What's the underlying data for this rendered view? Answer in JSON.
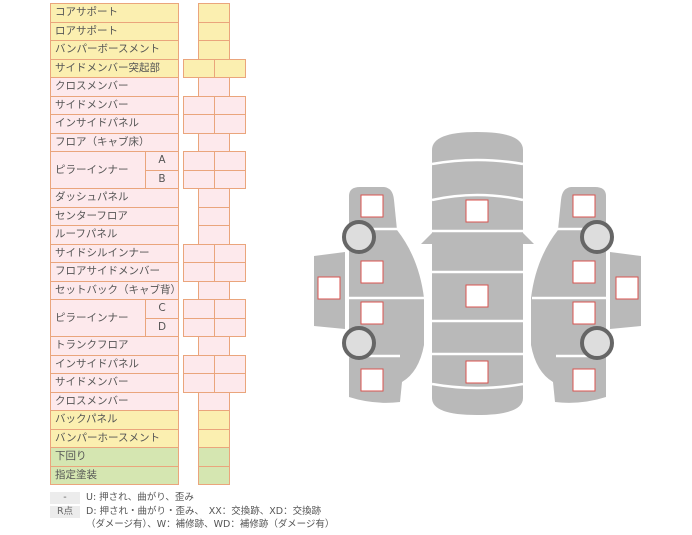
{
  "colors": {
    "yellow": "#fbefb0",
    "pink": "#fde9ec",
    "green": "#d5e6b1",
    "border": "#eaa57c",
    "body": "#b9b9b9",
    "marker": "#d9534f"
  },
  "rows": [
    {
      "label": "コアサポート",
      "color": "yellow",
      "cells": "single"
    },
    {
      "label": "ロアサポート",
      "color": "yellow",
      "cells": "single"
    },
    {
      "label": "バンパーボースメント",
      "color": "yellow",
      "cells": "single"
    },
    {
      "label": "サイドメンバー突起部",
      "color": "yellow",
      "cells": "double"
    },
    {
      "label": "クロスメンバー",
      "color": "pink",
      "cells": "single"
    },
    {
      "label": "サイドメンバー",
      "color": "pink",
      "cells": "double"
    },
    {
      "label": "インサイドパネル",
      "color": "pink",
      "cells": "double"
    },
    {
      "label": "フロア（キャブ床）",
      "color": "pink",
      "cells": "single"
    },
    {
      "label": "ピラーインナー",
      "color": "pink",
      "cells": "double",
      "subs": [
        "A",
        "B"
      ]
    },
    {
      "label": "ダッシュパネル",
      "color": "pink",
      "cells": "single"
    },
    {
      "label": "センターフロア",
      "color": "pink",
      "cells": "single"
    },
    {
      "label": "ルーフパネル",
      "color": "pink",
      "cells": "single"
    },
    {
      "label": "サイドシルインナー",
      "color": "pink",
      "cells": "double"
    },
    {
      "label": "フロアサイドメンバー",
      "color": "pink",
      "cells": "double"
    },
    {
      "label": "セットバック（キャブ背）",
      "color": "pink",
      "cells": "single"
    },
    {
      "label": "ピラーインナー",
      "color": "pink",
      "cells": "double",
      "subs": [
        "C",
        "D"
      ]
    },
    {
      "label": "トランクフロア",
      "color": "pink",
      "cells": "single"
    },
    {
      "label": "インサイドパネル",
      "color": "pink",
      "cells": "double"
    },
    {
      "label": "サイドメンバー",
      "color": "pink",
      "cells": "double"
    },
    {
      "label": "クロスメンバー",
      "color": "pink",
      "cells": "single"
    },
    {
      "label": "バックパネル",
      "color": "yellow",
      "cells": "single"
    },
    {
      "label": "バンパーホースメント",
      "color": "yellow",
      "cells": "single"
    },
    {
      "label": "下回り",
      "color": "green",
      "cells": "single"
    },
    {
      "label": "指定塗装",
      "color": "green",
      "cells": "single"
    }
  ],
  "legend": [
    {
      "key": "-",
      "text": "U: 押され、曲がり、歪み"
    },
    {
      "key": "R点",
      "text": "D: 押され・曲がり・歪み、　XX：交換跡、XD：交換跡",
      "text2": "（ダメージ有）、W：補修跡、WD：補修跡（ダメージ有）"
    }
  ]
}
